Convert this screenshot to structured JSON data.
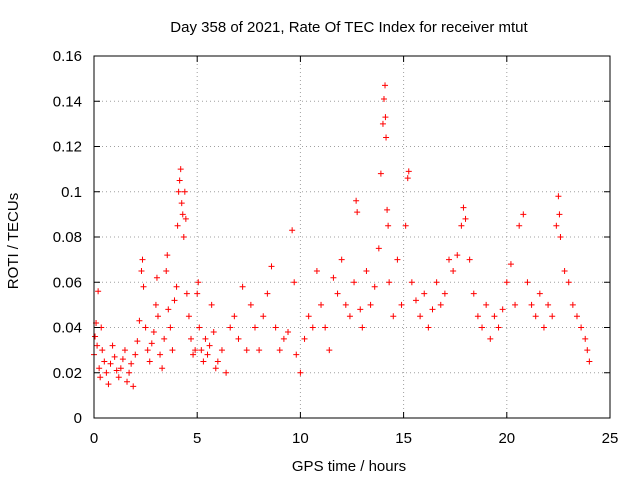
{
  "chart_data": {
    "type": "scatter",
    "title": "Day 358 of 2021, Rate Of TEC Index for receiver mtut",
    "xlabel": "GPS time / hours",
    "ylabel": "ROTI / TECUs",
    "xlim": [
      0,
      25
    ],
    "ylim": [
      0,
      0.16
    ],
    "xticks": [
      "0",
      "5",
      "10",
      "15",
      "20",
      "25"
    ],
    "yticks": [
      "0",
      "0.02",
      "0.04",
      "0.06",
      "0.08",
      "0.1",
      "0.12",
      "0.14",
      "0.16"
    ],
    "grid": true,
    "marker": "+",
    "color": "#ff0000",
    "series": [
      {
        "points": [
          [
            0.0,
            0.028
          ],
          [
            0.05,
            0.036
          ],
          [
            0.1,
            0.042
          ],
          [
            0.15,
            0.032
          ],
          [
            0.2,
            0.056
          ],
          [
            0.25,
            0.022
          ],
          [
            0.3,
            0.018
          ],
          [
            0.35,
            0.04
          ],
          [
            0.4,
            0.03
          ],
          [
            0.5,
            0.025
          ],
          [
            0.6,
            0.02
          ],
          [
            0.7,
            0.015
          ],
          [
            0.8,
            0.024
          ],
          [
            0.9,
            0.032
          ],
          [
            1.0,
            0.027
          ],
          [
            1.1,
            0.021
          ],
          [
            1.2,
            0.018
          ],
          [
            1.3,
            0.022
          ],
          [
            1.4,
            0.026
          ],
          [
            1.5,
            0.03
          ],
          [
            1.6,
            0.016
          ],
          [
            1.7,
            0.02
          ],
          [
            1.8,
            0.024
          ],
          [
            1.9,
            0.014
          ],
          [
            2.0,
            0.028
          ],
          [
            2.1,
            0.034
          ],
          [
            2.2,
            0.043
          ],
          [
            2.3,
            0.065
          ],
          [
            2.35,
            0.07
          ],
          [
            2.4,
            0.058
          ],
          [
            2.5,
            0.04
          ],
          [
            2.6,
            0.03
          ],
          [
            2.7,
            0.025
          ],
          [
            2.8,
            0.033
          ],
          [
            2.9,
            0.038
          ],
          [
            3.0,
            0.05
          ],
          [
            3.05,
            0.062
          ],
          [
            3.1,
            0.045
          ],
          [
            3.2,
            0.028
          ],
          [
            3.3,
            0.022
          ],
          [
            3.4,
            0.035
          ],
          [
            3.5,
            0.065
          ],
          [
            3.55,
            0.072
          ],
          [
            3.6,
            0.048
          ],
          [
            3.7,
            0.04
          ],
          [
            3.8,
            0.03
          ],
          [
            3.9,
            0.052
          ],
          [
            4.0,
            0.058
          ],
          [
            4.05,
            0.085
          ],
          [
            4.1,
            0.1
          ],
          [
            4.15,
            0.105
          ],
          [
            4.2,
            0.11
          ],
          [
            4.25,
            0.095
          ],
          [
            4.3,
            0.09
          ],
          [
            4.35,
            0.08
          ],
          [
            4.4,
            0.1
          ],
          [
            4.45,
            0.088
          ],
          [
            4.5,
            0.055
          ],
          [
            4.6,
            0.045
          ],
          [
            4.7,
            0.035
          ],
          [
            4.8,
            0.028
          ],
          [
            4.9,
            0.03
          ],
          [
            5.0,
            0.055
          ],
          [
            5.05,
            0.06
          ],
          [
            5.1,
            0.04
          ],
          [
            5.2,
            0.03
          ],
          [
            5.3,
            0.025
          ],
          [
            5.4,
            0.035
          ],
          [
            5.5,
            0.028
          ],
          [
            5.6,
            0.032
          ],
          [
            5.7,
            0.05
          ],
          [
            5.8,
            0.038
          ],
          [
            5.9,
            0.022
          ],
          [
            6.0,
            0.025
          ],
          [
            6.2,
            0.03
          ],
          [
            6.4,
            0.02
          ],
          [
            6.6,
            0.04
          ],
          [
            6.8,
            0.045
          ],
          [
            7.0,
            0.035
          ],
          [
            7.2,
            0.058
          ],
          [
            7.4,
            0.03
          ],
          [
            7.6,
            0.05
          ],
          [
            7.8,
            0.04
          ],
          [
            8.0,
            0.03
          ],
          [
            8.2,
            0.045
          ],
          [
            8.4,
            0.055
          ],
          [
            8.6,
            0.067
          ],
          [
            8.8,
            0.04
          ],
          [
            9.0,
            0.03
          ],
          [
            9.2,
            0.035
          ],
          [
            9.4,
            0.038
          ],
          [
            9.6,
            0.083
          ],
          [
            9.7,
            0.06
          ],
          [
            9.8,
            0.028
          ],
          [
            10.0,
            0.02
          ],
          [
            10.2,
            0.035
          ],
          [
            10.4,
            0.045
          ],
          [
            10.6,
            0.04
          ],
          [
            10.8,
            0.065
          ],
          [
            11.0,
            0.05
          ],
          [
            11.2,
            0.04
          ],
          [
            11.4,
            0.03
          ],
          [
            11.6,
            0.062
          ],
          [
            11.8,
            0.055
          ],
          [
            12.0,
            0.07
          ],
          [
            12.2,
            0.05
          ],
          [
            12.4,
            0.045
          ],
          [
            12.6,
            0.06
          ],
          [
            12.7,
            0.096
          ],
          [
            12.75,
            0.091
          ],
          [
            12.9,
            0.048
          ],
          [
            13.0,
            0.04
          ],
          [
            13.2,
            0.065
          ],
          [
            13.4,
            0.05
          ],
          [
            13.6,
            0.058
          ],
          [
            13.8,
            0.075
          ],
          [
            13.9,
            0.108
          ],
          [
            14.0,
            0.13
          ],
          [
            14.05,
            0.141
          ],
          [
            14.1,
            0.147
          ],
          [
            14.12,
            0.133
          ],
          [
            14.15,
            0.124
          ],
          [
            14.2,
            0.092
          ],
          [
            14.25,
            0.085
          ],
          [
            14.3,
            0.06
          ],
          [
            14.5,
            0.045
          ],
          [
            14.7,
            0.07
          ],
          [
            14.9,
            0.05
          ],
          [
            15.1,
            0.085
          ],
          [
            15.2,
            0.106
          ],
          [
            15.25,
            0.109
          ],
          [
            15.4,
            0.06
          ],
          [
            15.6,
            0.052
          ],
          [
            15.8,
            0.045
          ],
          [
            16.0,
            0.055
          ],
          [
            16.2,
            0.04
          ],
          [
            16.4,
            0.048
          ],
          [
            16.6,
            0.06
          ],
          [
            16.8,
            0.05
          ],
          [
            17.0,
            0.055
          ],
          [
            17.2,
            0.07
          ],
          [
            17.4,
            0.065
          ],
          [
            17.6,
            0.072
          ],
          [
            17.8,
            0.085
          ],
          [
            17.9,
            0.093
          ],
          [
            18.0,
            0.088
          ],
          [
            18.2,
            0.07
          ],
          [
            18.4,
            0.055
          ],
          [
            18.6,
            0.045
          ],
          [
            18.8,
            0.04
          ],
          [
            19.0,
            0.05
          ],
          [
            19.2,
            0.035
          ],
          [
            19.4,
            0.045
          ],
          [
            19.6,
            0.04
          ],
          [
            19.8,
            0.048
          ],
          [
            20.0,
            0.06
          ],
          [
            20.2,
            0.068
          ],
          [
            20.4,
            0.05
          ],
          [
            20.6,
            0.085
          ],
          [
            20.8,
            0.09
          ],
          [
            21.0,
            0.06
          ],
          [
            21.2,
            0.05
          ],
          [
            21.4,
            0.045
          ],
          [
            21.6,
            0.055
          ],
          [
            21.8,
            0.04
          ],
          [
            22.0,
            0.05
          ],
          [
            22.2,
            0.045
          ],
          [
            22.4,
            0.085
          ],
          [
            22.5,
            0.098
          ],
          [
            22.55,
            0.09
          ],
          [
            22.6,
            0.08
          ],
          [
            22.8,
            0.065
          ],
          [
            23.0,
            0.06
          ],
          [
            23.2,
            0.05
          ],
          [
            23.4,
            0.045
          ],
          [
            23.6,
            0.04
          ],
          [
            23.8,
            0.035
          ],
          [
            23.9,
            0.03
          ],
          [
            24.0,
            0.025
          ]
        ]
      }
    ]
  }
}
